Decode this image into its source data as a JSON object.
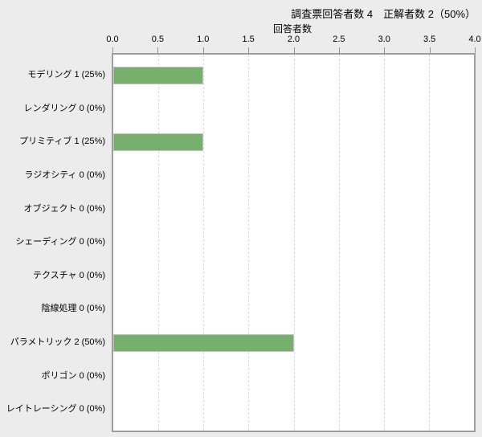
{
  "header": {
    "title": "調査票回答者数 4　正解者数 2（50%）"
  },
  "chart_data": {
    "type": "bar",
    "orientation": "horizontal",
    "title": "調査票回答者数 4　正解者数 2（50%）",
    "summary": {
      "respondents": 4,
      "correct": 2,
      "correct_percent": "50%"
    },
    "xlabel": "回答者数",
    "ylabel": "",
    "categories": [
      "モデリング",
      "レンダリング",
      "プリミティブ",
      "ラジオシティ",
      "オブジェクト",
      "シェーディング",
      "テクスチャ",
      "陰線処理",
      "パラメトリック",
      "ポリゴン",
      "レイトレーシング"
    ],
    "category_labels": [
      "モデリング 1 (25%)",
      "レンダリング 0 (0%)",
      "プリミティブ 1 (25%)",
      "ラジオシティ 0 (0%)",
      "オブジェクト 0 (0%)",
      "シェーディング 0 (0%)",
      "テクスチャ 0 (0%)",
      "陰線処理 0 (0%)",
      "パラメトリック 2 (50%)",
      "ポリゴン 0 (0%)",
      "レイトレーシング 0 (0%)"
    ],
    "values": [
      1,
      0,
      1,
      0,
      0,
      0,
      0,
      0,
      2,
      0,
      0
    ],
    "percentages": [
      25,
      0,
      25,
      0,
      0,
      0,
      0,
      0,
      50,
      0,
      0
    ],
    "xlim": [
      0,
      4
    ],
    "x_ticks": [
      0,
      0.5,
      1,
      1.5,
      2,
      2.5,
      3,
      3.5,
      4
    ],
    "x_tick_labels": [
      "0.0",
      "0.5",
      "1.0",
      "1.5",
      "2.0",
      "2.5",
      "3.0",
      "3.5",
      "4.0"
    ],
    "grid": "dashed-vertical",
    "legend": "none",
    "colors": {
      "bar_fill": "#76B06C",
      "bar_border": "#C3C3C3",
      "plot_background": "#FFFFFF",
      "page_background": "#ECECEC",
      "plot_border": "#9E9E9E",
      "gridline": "#DBDBDB",
      "text": "#000000"
    }
  }
}
